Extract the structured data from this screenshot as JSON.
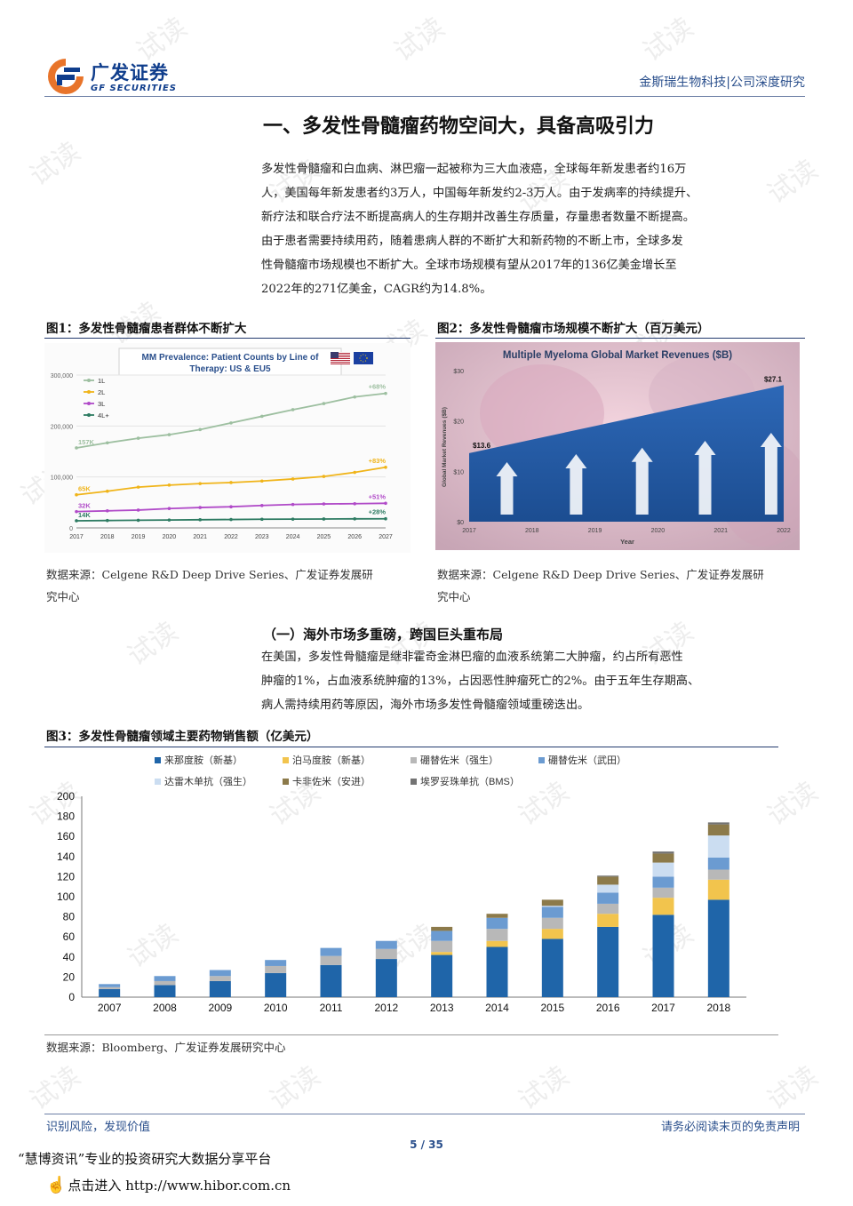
{
  "header": {
    "brand_cn": "广发证券",
    "brand_en": "GF SECURITIES",
    "right_text": "金斯瑞生物科技|公司深度研究"
  },
  "section1": {
    "title": "一、多发性骨髓瘤药物空间大，具备高吸引力",
    "lines": [
      "多发性骨髓瘤和白血病、淋巴瘤一起被称为三大血液癌，全球每年新发患者约16万",
      "人，美国每年新发患者约3万人，中国每年新发约2-3万人。由于发病率的持续提升、",
      "新疗法和联合疗法不断提高病人的生存期并改善生存质量，存量患者数量不断提高。",
      "由于患者需要持续用药，随着患病人群的不断扩大和新药物的不断上市，全球多发",
      "性骨髓瘤市场规模也不断扩大。全球市场规模有望从2017年的136亿美金增长至",
      "2022年的271亿美金，CAGR约为14.8%。"
    ]
  },
  "figure1": {
    "title": "图1：多发性骨髓瘤患者群体不断扩大",
    "source_line1": "数据来源：Celgene R&D Deep Drive Series、广发证券发展研",
    "source_line2": "究中心"
  },
  "figure2": {
    "title": "图2：多发性骨髓瘤市场规模不断扩大（百万美元）",
    "source_line1": "数据来源：Celgene R&D Deep Drive Series、广发证券发展研",
    "source_line2": "究中心"
  },
  "section2": {
    "title": "（一）海外市场多重磅，跨国巨头重布局",
    "lines": [
      "在美国，多发性骨髓瘤是继非霍奇金淋巴瘤的血液系统第二大肿瘤，约占所有恶性",
      "肿瘤的1%，占血液系统肿瘤的13%，占因恶性肿瘤死亡的2%。由于五年生存期高、",
      "病人需持续用药等原因，海外市场多发性骨髓瘤领域重磅迭出。"
    ]
  },
  "figure3": {
    "title": "图3：多发性骨髓瘤领域主要药物销售额（亿美元）",
    "source": "数据来源：Bloomberg、广发证券发展研究中心"
  },
  "footer": {
    "left": "识别风险，发现价值",
    "right": "请务必阅读末页的免责声明",
    "page": "5 / 35",
    "hibor_brand": "“慧博资讯”专业的投资研究大数据分享平台",
    "hibor_url": "点击进入 http://www.hibor.com.cn"
  },
  "watermark_text": "试读",
  "colors": {
    "brand_blue": "#0f3d8c",
    "accent_orange": "#e8742a"
  },
  "chart_data": [
    {
      "type": "line",
      "title": "MM Prevalence: Patient Counts by Line of Therapy: US & EU5",
      "x": [
        "2017",
        "2018",
        "2019",
        "2020",
        "2021",
        "2022",
        "2023",
        "2024",
        "2025",
        "2026",
        "2027"
      ],
      "ylim": [
        0,
        300000
      ],
      "yticks": [
        "0",
        "100,000",
        "200,000",
        "300,000"
      ],
      "series": [
        {
          "name": "1L",
          "color": "#9dbfa0",
          "values": [
            157000,
            167000,
            176000,
            183000,
            193000,
            206000,
            219000,
            232000,
            244000,
            257000,
            264000
          ],
          "start_label": "157K",
          "end_label": "+68%"
        },
        {
          "name": "2L",
          "color": "#f0b419",
          "values": [
            65000,
            72000,
            80000,
            84000,
            87000,
            89000,
            92000,
            96000,
            101000,
            109000,
            119000
          ],
          "start_label": "65K",
          "end_label": "+83%"
        },
        {
          "name": "3L",
          "color": "#b04ac8",
          "values": [
            32000,
            33500,
            35000,
            38000,
            40000,
            41500,
            44000,
            46000,
            47000,
            47500,
            48300
          ],
          "start_label": "32K",
          "end_label": "+51%"
        },
        {
          "name": "4L+",
          "color": "#2d7b62",
          "values": [
            14000,
            14500,
            15000,
            15500,
            16000,
            16500,
            17000,
            17200,
            17500,
            17800,
            17900
          ],
          "start_label": "14K",
          "end_label": "+28%"
        }
      ],
      "grid": true,
      "legend": "top-left"
    },
    {
      "type": "area",
      "title": "Multiple Myeloma Global Market Revenues ($B)",
      "xlabel": "Year",
      "ylabel": "Global Market Revenues ($B)",
      "x": [
        "2017",
        "2018",
        "2019",
        "2020",
        "2021",
        "2022"
      ],
      "values": [
        13.6,
        16.3,
        19.0,
        21.7,
        24.4,
        27.1
      ],
      "ylim": [
        0,
        30
      ],
      "yticks": [
        "$0",
        "$10",
        "$20",
        "$30"
      ],
      "labels": {
        "start": "$13.6",
        "end": "$27.1"
      }
    },
    {
      "type": "bar",
      "stacked": true,
      "categories": [
        "2007",
        "2008",
        "2009",
        "2010",
        "2011",
        "2012",
        "2013",
        "2014",
        "2015",
        "2016",
        "2017",
        "2018"
      ],
      "ylim": [
        0,
        200
      ],
      "yticks": [
        "0",
        "20",
        "40",
        "60",
        "80",
        "100",
        "120",
        "140",
        "160",
        "180",
        "200"
      ],
      "legend": "top-left",
      "series": [
        {
          "name": "来那度胺（新基）",
          "color": "#1f65a9",
          "values": [
            8,
            12,
            16,
            24,
            32,
            38,
            42,
            50,
            58,
            70,
            82,
            97
          ]
        },
        {
          "name": "泊马度胺（新基）",
          "color": "#f2c44d",
          "values": [
            0,
            0,
            0,
            0,
            0,
            0,
            3,
            6,
            10,
            13,
            17,
            20
          ]
        },
        {
          "name": "硼替佐米（强生）",
          "color": "#b8b8b8",
          "values": [
            2,
            4,
            5,
            7,
            9,
            10,
            11,
            12,
            11,
            10,
            10,
            10
          ]
        },
        {
          "name": "硼替佐米（武田）",
          "color": "#6b9bd1",
          "values": [
            3,
            5,
            6,
            6,
            8,
            8,
            10,
            11,
            11,
            11,
            11,
            12
          ]
        },
        {
          "name": "达雷木单抗（强生）",
          "color": "#cbddf1",
          "values": [
            0,
            0,
            0,
            0,
            0,
            0,
            0,
            0,
            1,
            8,
            14,
            22
          ]
        },
        {
          "name": "卡非佐米（安进）",
          "color": "#8c7a4a",
          "values": [
            0,
            0,
            0,
            0,
            0,
            0,
            4,
            4,
            6,
            8,
            9,
            11
          ]
        },
        {
          "name": "埃罗妥珠单抗（BMS）",
          "color": "#737373",
          "values": [
            0,
            0,
            0,
            0,
            0,
            0,
            0,
            0,
            0,
            1,
            2,
            2
          ]
        }
      ]
    }
  ]
}
